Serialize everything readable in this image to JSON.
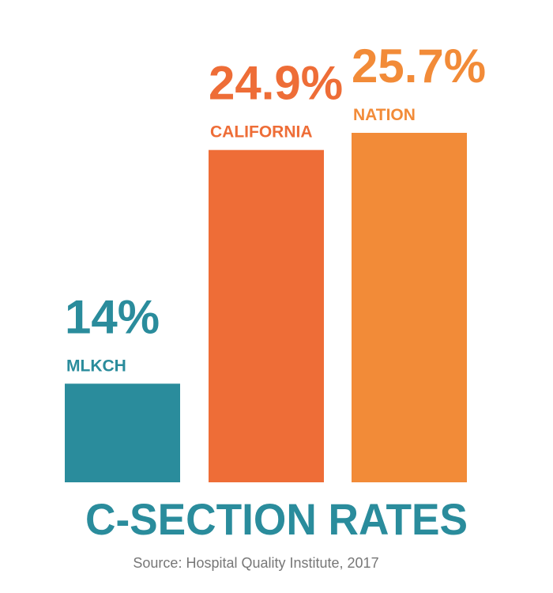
{
  "chart_data": {
    "type": "bar",
    "title": "C-SECTION RATES",
    "source": "Source: Hospital Quality Institute, 2017",
    "categories": [
      "MLKCH",
      "CALIFORNIA",
      "NATION"
    ],
    "values": [
      14,
      24.9,
      25.7
    ],
    "value_labels": [
      "14%",
      "24.9%",
      "25.7%"
    ],
    "unit": "%",
    "colors": [
      "#2a8c9c",
      "#ee6d37",
      "#f28b38"
    ],
    "title_color": "#2a8c9c",
    "source_color": "#777777",
    "ylim": [
      9.4,
      25.7
    ],
    "grid": false,
    "legend": "none"
  }
}
